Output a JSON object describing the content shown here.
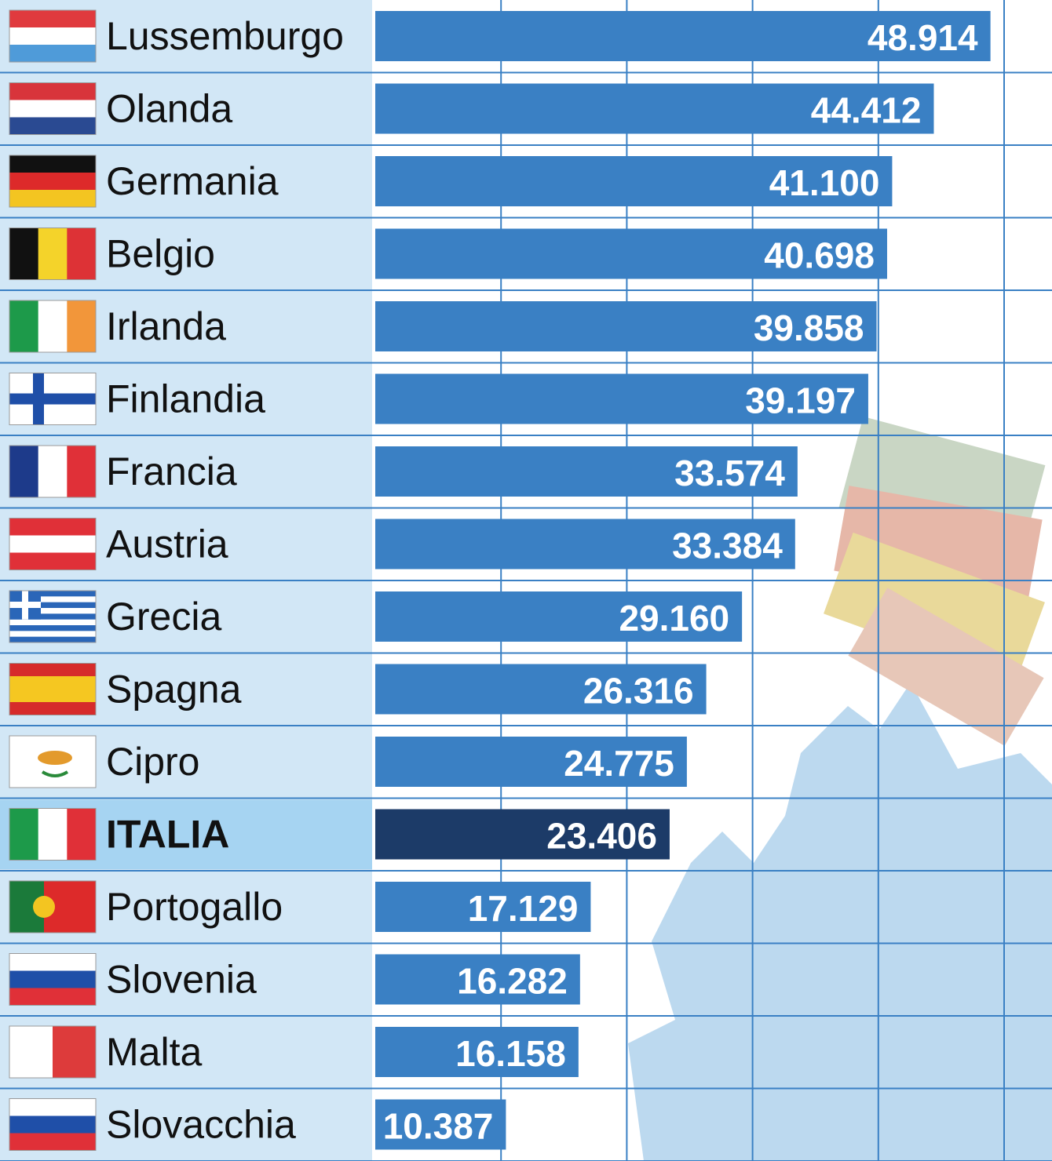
{
  "chart_data": {
    "type": "hbar",
    "categories": [
      "Lussemburgo",
      "Olanda",
      "Germania",
      "Belgio",
      "Irlanda",
      "Finlandia",
      "Francia",
      "Austria",
      "Grecia",
      "Spagna",
      "Cipro",
      "ITALIA",
      "Portogallo",
      "Slovenia",
      "Malta",
      "Slovacchia"
    ],
    "values": [
      48914,
      44412,
      41100,
      40698,
      39858,
      39197,
      33574,
      33384,
      29160,
      26316,
      24775,
      23406,
      17129,
      16282,
      16158,
      10387
    ],
    "value_labels": [
      "48.914",
      "44.412",
      "41.100",
      "40.698",
      "39.858",
      "39.197",
      "33.574",
      "33.384",
      "29.160",
      "26.316",
      "24.775",
      "23.406",
      "17.129",
      "16.282",
      "16.158",
      "10.387"
    ],
    "color": "#3a80c4",
    "highlight": [
      false,
      false,
      false,
      false,
      false,
      false,
      false,
      false,
      false,
      false,
      false,
      true,
      false,
      false,
      false,
      false
    ],
    "highlight_color": "#1c3b68",
    "xlim": [
      0,
      50000
    ],
    "xticks": [
      10000,
      20000,
      30000,
      40000,
      50000
    ],
    "grid": true
  }
}
